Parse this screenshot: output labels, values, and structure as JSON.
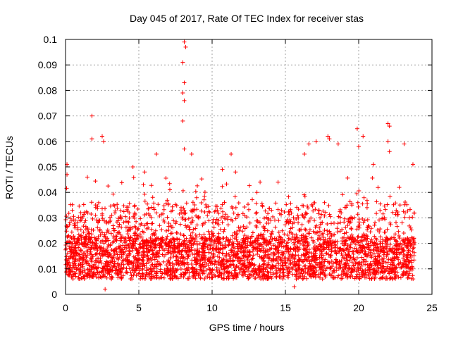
{
  "chart_data": {
    "type": "scatter",
    "title": "Day 045 of 2017, Rate Of TEC Index for receiver stas",
    "xlabel": "GPS time / hours",
    "ylabel": "ROTI / TECUs",
    "xlim": [
      0,
      25
    ],
    "ylim": [
      0,
      0.1
    ],
    "x_ticks": [
      0,
      5,
      10,
      15,
      20,
      25
    ],
    "x_tick_labels": [
      "0",
      "5",
      "10",
      "15",
      "20",
      "25"
    ],
    "y_ticks": [
      0,
      0.01,
      0.02,
      0.03,
      0.04,
      0.05,
      0.06,
      0.07,
      0.08,
      0.09,
      0.1
    ],
    "y_tick_labels": [
      "0",
      "0.01",
      "0.02",
      "0.03",
      "0.04",
      "0.05",
      "0.06",
      "0.07",
      "0.08",
      "0.09",
      "0.1"
    ],
    "grid": true,
    "marker": "+",
    "color": "#ff0000",
    "data_x_range": [
      0,
      23.8
    ],
    "baseline_range": [
      0.006,
      0.022
    ],
    "notable_points": [
      {
        "x": 8.1,
        "y": 0.099
      },
      {
        "x": 8.2,
        "y": 0.097
      },
      {
        "x": 8.0,
        "y": 0.091
      },
      {
        "x": 8.1,
        "y": 0.083
      },
      {
        "x": 8.0,
        "y": 0.079
      },
      {
        "x": 8.1,
        "y": 0.076
      },
      {
        "x": 8.0,
        "y": 0.068
      },
      {
        "x": 1.8,
        "y": 0.07
      },
      {
        "x": 1.8,
        "y": 0.061
      },
      {
        "x": 2.5,
        "y": 0.062
      },
      {
        "x": 2.6,
        "y": 0.06
      },
      {
        "x": 0.1,
        "y": 0.051
      },
      {
        "x": 0.1,
        "y": 0.047
      },
      {
        "x": 4.6,
        "y": 0.05
      },
      {
        "x": 5.4,
        "y": 0.048
      },
      {
        "x": 6.2,
        "y": 0.055
      },
      {
        "x": 8.1,
        "y": 0.057
      },
      {
        "x": 8.6,
        "y": 0.055
      },
      {
        "x": 10.7,
        "y": 0.049
      },
      {
        "x": 11.3,
        "y": 0.055
      },
      {
        "x": 11.6,
        "y": 0.048
      },
      {
        "x": 16.3,
        "y": 0.055
      },
      {
        "x": 16.6,
        "y": 0.059
      },
      {
        "x": 17.1,
        "y": 0.06
      },
      {
        "x": 17.9,
        "y": 0.062
      },
      {
        "x": 18.0,
        "y": 0.061
      },
      {
        "x": 18.6,
        "y": 0.059
      },
      {
        "x": 19.9,
        "y": 0.065
      },
      {
        "x": 20.0,
        "y": 0.058
      },
      {
        "x": 20.3,
        "y": 0.062
      },
      {
        "x": 21.0,
        "y": 0.051
      },
      {
        "x": 22.0,
        "y": 0.067
      },
      {
        "x": 22.1,
        "y": 0.066
      },
      {
        "x": 22.0,
        "y": 0.06
      },
      {
        "x": 22.1,
        "y": 0.056
      },
      {
        "x": 23.1,
        "y": 0.059
      },
      {
        "x": 23.7,
        "y": 0.051
      },
      {
        "x": 2.7,
        "y": 0.002
      },
      {
        "x": 15.6,
        "y": 0.003
      }
    ]
  }
}
